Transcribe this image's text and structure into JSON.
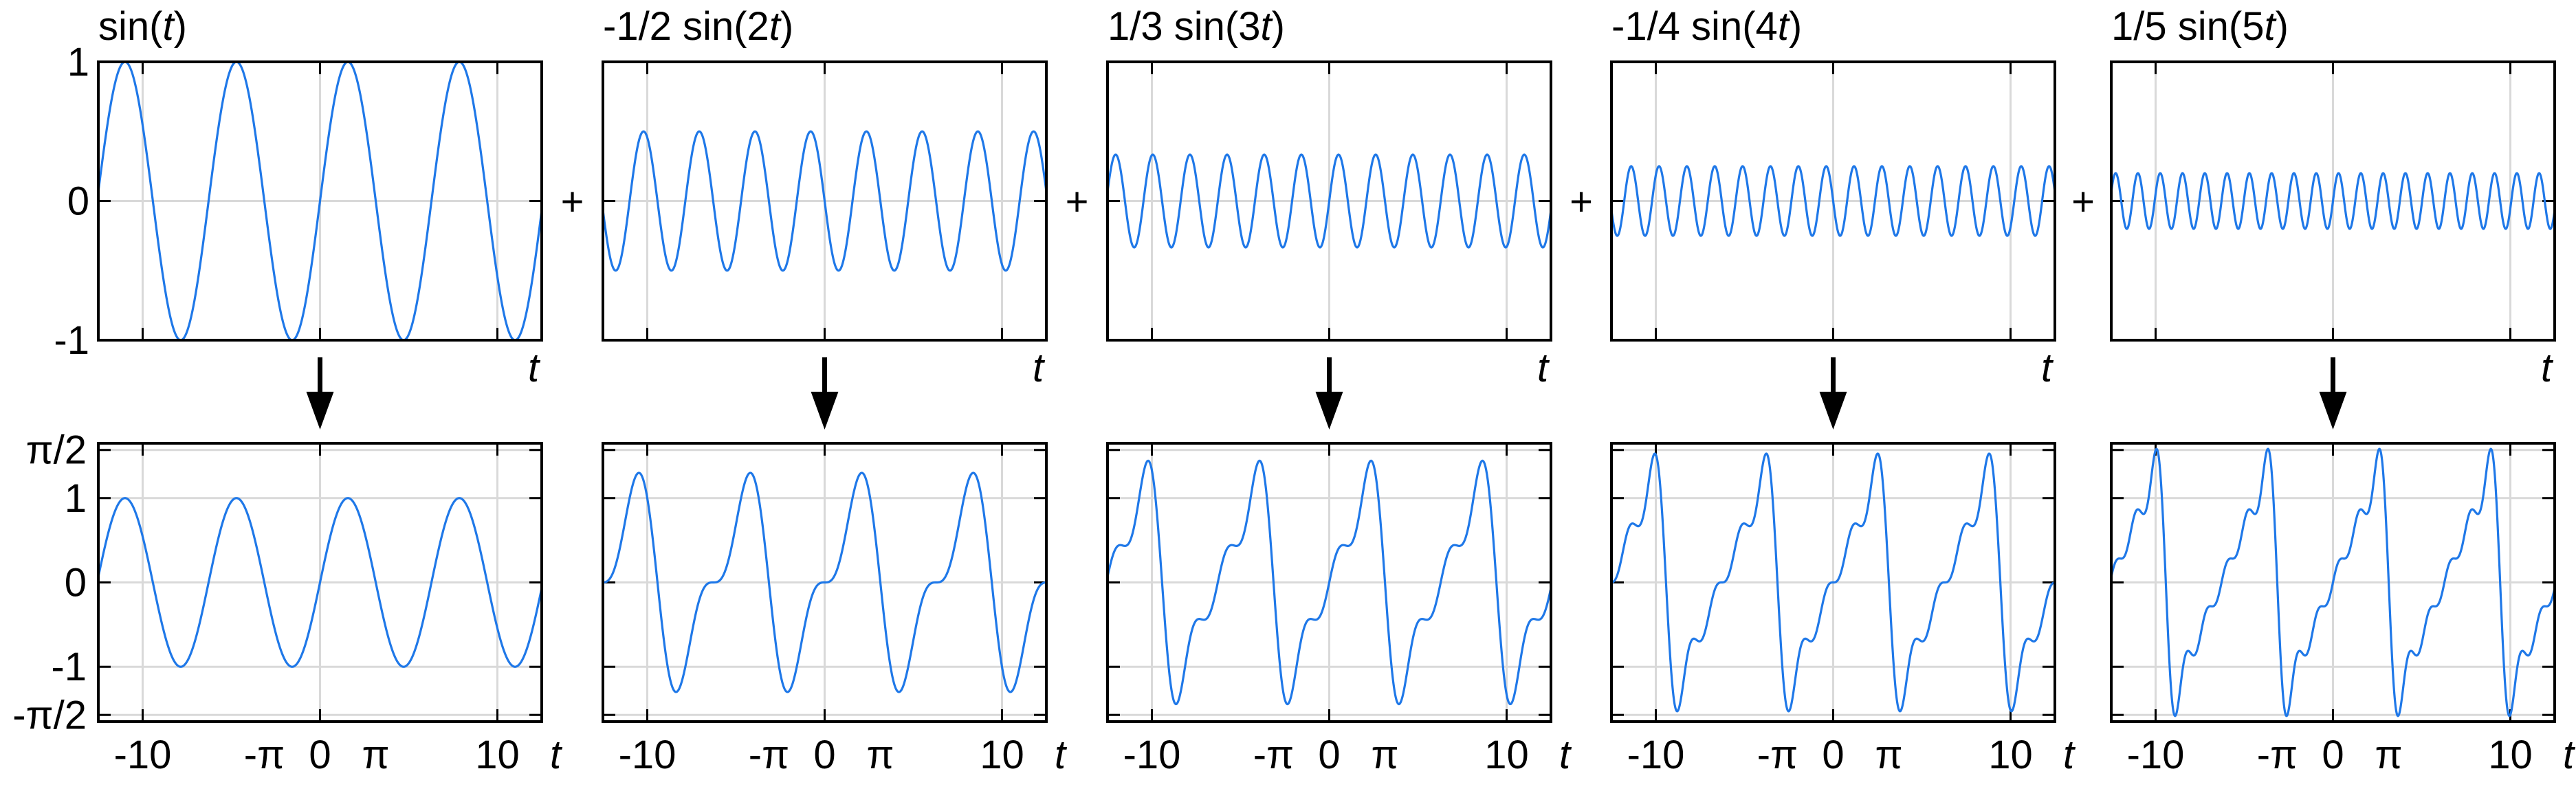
{
  "colors": {
    "curve": "#1f78e8",
    "grid": "#d9d9d9",
    "frame": "#000000"
  },
  "operator": "+",
  "arrow_icon": "down-arrow-icon",
  "chart_data": {
    "type": "line",
    "xlabel": "t",
    "x_range": [
      -12.5,
      12.5
    ],
    "grid": true,
    "top_row": {
      "ylim": [
        -1,
        1
      ],
      "y_ticks": [
        -1,
        0,
        1
      ],
      "y_tick_labels": [
        "-1",
        "0",
        "1"
      ]
    },
    "bottom_row": {
      "ylim": [
        -1.65,
        1.65
      ],
      "y_ticks": [
        -1.5708,
        -1,
        0,
        1,
        1.5708
      ],
      "y_tick_labels": [
        "-π/2",
        "-1",
        "0",
        "1",
        "π/2"
      ],
      "x_ticks": [
        -10,
        -3.1416,
        0,
        3.1416,
        10
      ],
      "x_tick_labels": [
        "-10",
        "-π",
        "0",
        "π",
        "10"
      ]
    },
    "panels": [
      {
        "title": {
          "coef": "sin(",
          "var": "t",
          "close": ")"
        },
        "harmonic": 1,
        "coefficient": 1,
        "bottom": "sin(t)"
      },
      {
        "title": {
          "coef": "-1/2 sin(2",
          "var": "t",
          "close": ")"
        },
        "harmonic": 2,
        "coefficient": -0.5,
        "bottom": "sum of terms 1..2"
      },
      {
        "title": {
          "coef": "1/3 sin(3",
          "var": "t",
          "close": ")"
        },
        "harmonic": 3,
        "coefficient": 0.3333,
        "bottom": "sum of terms 1..3"
      },
      {
        "title": {
          "coef": "-1/4 sin(4",
          "var": "t",
          "close": ")"
        },
        "harmonic": 4,
        "coefficient": -0.25,
        "bottom": "sum of terms 1..4"
      },
      {
        "title": {
          "coef": "1/5 sin(5",
          "var": "t",
          "close": ")"
        },
        "harmonic": 5,
        "coefficient": 0.2,
        "bottom": "sum of terms 1..5"
      }
    ]
  }
}
